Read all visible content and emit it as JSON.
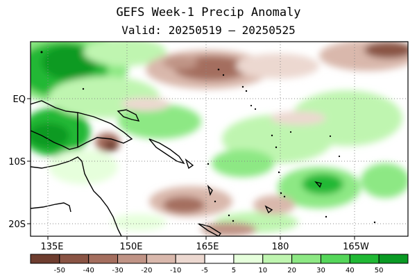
{
  "title": "GEFS Week-1 Precip Anomaly",
  "subtitle": "Valid: 20250519 – 20250525",
  "map": {
    "lon_labels": [
      "135E",
      "150E",
      "165E",
      "180",
      "165W"
    ],
    "lat_labels": [
      "EQ",
      "10S",
      "20S"
    ],
    "gridlines": "dotted"
  },
  "colorbar": {
    "tick_labels": [
      "-50",
      "-40",
      "-30",
      "-20",
      "-10",
      "-5",
      "5",
      "10",
      "20",
      "30",
      "40",
      "50"
    ],
    "colors": [
      "#6e3d2f",
      "#8a5444",
      "#a46e5e",
      "#c09486",
      "#d9b8ac",
      "#ecd8d0",
      "#ffffff",
      "#e6ffdc",
      "#bff5b0",
      "#8de884",
      "#55d65a",
      "#20b834",
      "#0a9a24"
    ]
  }
}
